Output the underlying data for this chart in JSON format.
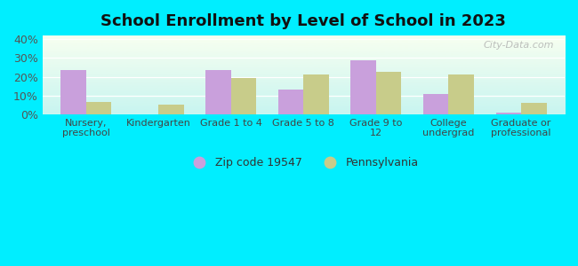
{
  "title": "School Enrollment by Level of School in 2023",
  "categories": [
    "Nursery,\npreschool",
    "Kindergarten",
    "Grade 1 to 4",
    "Grade 5 to 8",
    "Grade 9 to\n12",
    "College\nundergrad",
    "Graduate or\nprofessional"
  ],
  "zip_values": [
    23.5,
    0.0,
    23.5,
    13.0,
    29.0,
    11.0,
    1.0
  ],
  "pa_values": [
    6.5,
    5.0,
    19.5,
    21.0,
    22.5,
    21.0,
    6.0
  ],
  "zip_color": "#c9a0dc",
  "pa_color": "#c8cc8a",
  "background_outer": "#00eeff",
  "background_inner_top": "#f8fff0",
  "background_inner_bottom": "#c8f5f0",
  "ylim": [
    0,
    42
  ],
  "yticks": [
    0,
    10,
    20,
    30,
    40
  ],
  "ytick_labels": [
    "0%",
    "10%",
    "20%",
    "30%",
    "40%"
  ],
  "legend_zip": "Zip code 19547",
  "legend_pa": "Pennsylvania",
  "watermark": "City-Data.com",
  "bar_width": 0.35
}
